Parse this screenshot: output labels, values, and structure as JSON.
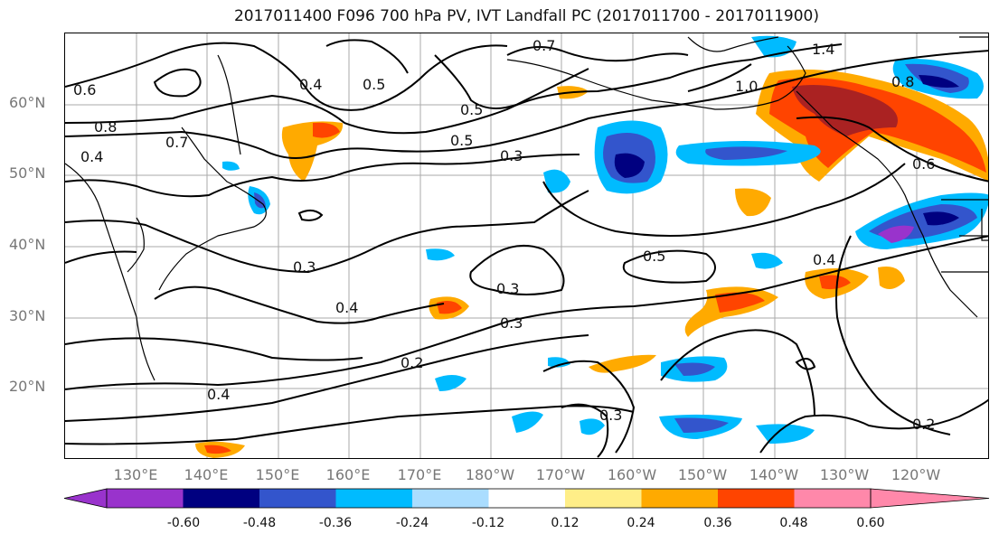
{
  "title": "2017011400 F096 700 hPa PV, IVT Landfall PC (2017011700 - 2017011900)",
  "lat_labels": [
    "60°N",
    "50°N",
    "40°N",
    "30°N",
    "20°N"
  ],
  "lon_labels": [
    "130°E",
    "140°E",
    "150°E",
    "160°E",
    "170°E",
    "180°W",
    "170°W",
    "160°W",
    "150°W",
    "140°W",
    "130°W",
    "120°W"
  ],
  "contour_labels": [
    "0.6",
    "0.4",
    "0.5",
    "0.8",
    "0.7",
    "0.4",
    "0.5",
    "0.3",
    "0.3",
    "0.4",
    "0.3",
    "0.2",
    "0.4",
    "0.3",
    "0.5",
    "0.3",
    "0.4",
    "0.2",
    "1.0",
    "1.4",
    "0.8",
    "0.6",
    "0.7",
    "0.5"
  ],
  "colorbar": {
    "colors": [
      "#9933cc",
      "#000080",
      "#3355cc",
      "#00bbff",
      "#aaddff",
      "#ffffff",
      "#ffee88",
      "#ffaa00",
      "#ff4400",
      "#aa2222",
      "#ff88aa"
    ],
    "tick_labels": [
      "-0.60",
      "-0.48",
      "-0.36",
      "-0.24",
      "-0.12",
      "0.12",
      "0.24",
      "0.36",
      "0.48",
      "0.60"
    ]
  }
}
